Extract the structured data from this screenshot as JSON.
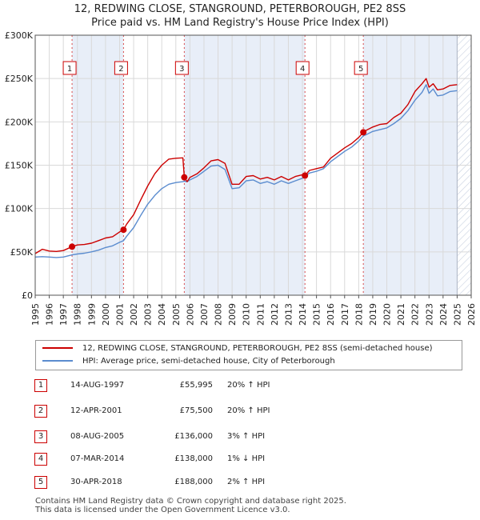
{
  "title": {
    "line1": "12, REDWING CLOSE, STANGROUND, PETERBOROUGH, PE2 8SS",
    "line2": "Price paid vs. HM Land Registry's House Price Index (HPI)"
  },
  "colors": {
    "property": "#cc0000",
    "hpi": "#5b8ccf",
    "shade": "#e8eef8",
    "hatch": "#d0d8e8",
    "marker_border": "#cc0000"
  },
  "legend": {
    "property_label": "12, REDWING CLOSE, STANGROUND, PETERBOROUGH, PE2 8SS (semi-detached house)",
    "hpi_label": "HPI: Average price, semi-detached house, City of Peterborough"
  },
  "sales": [
    {
      "num": "1",
      "date": "14-AUG-1997",
      "price": "£55,995",
      "hpi": "20% ↑ HPI"
    },
    {
      "num": "2",
      "date": "12-APR-2001",
      "price": "£75,500",
      "hpi": "20% ↑ HPI"
    },
    {
      "num": "3",
      "date": "08-AUG-2005",
      "price": "£136,000",
      "hpi": "3% ↑ HPI"
    },
    {
      "num": "4",
      "date": "07-MAR-2014",
      "price": "£138,000",
      "hpi": "1% ↓ HPI"
    },
    {
      "num": "5",
      "date": "30-APR-2018",
      "price": "£188,000",
      "hpi": "2% ↑ HPI"
    }
  ],
  "footer": {
    "line1": "Contains HM Land Registry data © Crown copyright and database right 2025.",
    "line2": "This data is licensed under the Open Government Licence v3.0."
  },
  "chart_data": {
    "type": "line",
    "title": "Price paid vs. HM Land Registry's House Price Index (HPI)",
    "xlim": [
      1995,
      2026
    ],
    "ylim": [
      0,
      300000
    ],
    "x_ticks": [
      1995,
      1996,
      1997,
      1998,
      1999,
      2000,
      2001,
      2002,
      2003,
      2004,
      2005,
      2006,
      2007,
      2008,
      2009,
      2010,
      2011,
      2012,
      2013,
      2014,
      2015,
      2016,
      2017,
      2018,
      2019,
      2020,
      2021,
      2022,
      2023,
      2024,
      2025,
      2026
    ],
    "x_tick_labels": [
      "1995",
      "1996",
      "1997",
      "1998",
      "1999",
      "2000",
      "2001",
      "2002",
      "2003",
      "2004",
      "2005",
      "2006",
      "2007",
      "2008",
      "2009",
      "2010",
      "2011",
      "2012",
      "2013",
      "2014",
      "2015",
      "2016",
      "2017",
      "2018",
      "2019",
      "2020",
      "2021",
      "2022",
      "2023",
      "2024",
      "2025",
      "2026"
    ],
    "y_ticks": [
      0,
      50000,
      100000,
      150000,
      200000,
      250000,
      300000
    ],
    "y_tick_labels": [
      "£0",
      "£50K",
      "£100K",
      "£150K",
      "£200K",
      "£250K",
      "£300K"
    ],
    "forecast_start": 2025.0,
    "shaded_periods": [
      [
        1997.62,
        2001.28
      ],
      [
        2005.6,
        2014.18
      ],
      [
        2018.33,
        2025.0
      ]
    ],
    "sale_markers": [
      {
        "label": "1",
        "x": 1997.62,
        "y": 55995
      },
      {
        "label": "2",
        "x": 2001.28,
        "y": 75500
      },
      {
        "label": "3",
        "x": 2005.6,
        "y": 136000
      },
      {
        "label": "4",
        "x": 2014.18,
        "y": 138000
      },
      {
        "label": "5",
        "x": 2018.33,
        "y": 188000
      }
    ],
    "series": [
      {
        "name": "12, REDWING CLOSE, STANGROUND, PETERBOROUGH, PE2 8SS (semi-detached house)",
        "color": "#cc0000",
        "x": [
          1995.0,
          1995.5,
          1996.0,
          1996.5,
          1997.0,
          1997.62,
          1998.0,
          1998.5,
          1999.0,
          1999.5,
          2000.0,
          2000.5,
          2001.0,
          2001.28,
          2001.5,
          2002.0,
          2002.5,
          2003.0,
          2003.5,
          2004.0,
          2004.5,
          2005.0,
          2005.5,
          2005.6,
          2005.8,
          2006.0,
          2006.5,
          2007.0,
          2007.5,
          2008.0,
          2008.5,
          2009.0,
          2009.5,
          2010.0,
          2010.5,
          2011.0,
          2011.5,
          2012.0,
          2012.5,
          2013.0,
          2013.5,
          2014.0,
          2014.18,
          2014.5,
          2015.0,
          2015.5,
          2016.0,
          2016.5,
          2017.0,
          2017.5,
          2018.0,
          2018.33,
          2018.5,
          2019.0,
          2019.5,
          2020.0,
          2020.5,
          2021.0,
          2021.5,
          2022.0,
          2022.5,
          2022.8,
          2023.0,
          2023.3,
          2023.6,
          2024.0,
          2024.5,
          2025.0
        ],
        "y": [
          48000,
          53000,
          51000,
          50500,
          51500,
          55995,
          58000,
          58500,
          60000,
          63000,
          66000,
          67500,
          73000,
          75500,
          82000,
          93000,
          110000,
          126000,
          140000,
          150000,
          157000,
          158000,
          158500,
          136000,
          131000,
          136000,
          140000,
          147000,
          155000,
          156500,
          152000,
          128000,
          128000,
          137000,
          138000,
          134000,
          136000,
          133000,
          137000,
          133000,
          137000,
          139000,
          138000,
          144000,
          146000,
          148000,
          158000,
          164000,
          170000,
          175000,
          182000,
          188000,
          190000,
          194000,
          197000,
          198000,
          205000,
          210000,
          220000,
          235000,
          244000,
          250000,
          240000,
          244000,
          237000,
          238000,
          242000,
          243000
        ]
      },
      {
        "name": "HPI: Average price, semi-detached house, City of Peterborough",
        "color": "#5b8ccf",
        "x": [
          1995.0,
          1995.5,
          1996.0,
          1996.5,
          1997.0,
          1997.62,
          1998.0,
          1998.5,
          1999.0,
          1999.5,
          2000.0,
          2000.5,
          2001.0,
          2001.28,
          2001.5,
          2002.0,
          2002.5,
          2003.0,
          2003.5,
          2004.0,
          2004.5,
          2005.0,
          2005.5,
          2005.6,
          2005.8,
          2006.0,
          2006.5,
          2007.0,
          2007.5,
          2008.0,
          2008.5,
          2009.0,
          2009.5,
          2010.0,
          2010.5,
          2011.0,
          2011.5,
          2012.0,
          2012.5,
          2013.0,
          2013.5,
          2014.0,
          2014.18,
          2014.5,
          2015.0,
          2015.5,
          2016.0,
          2016.5,
          2017.0,
          2017.5,
          2018.0,
          2018.33,
          2018.5,
          2019.0,
          2019.5,
          2020.0,
          2020.5,
          2021.0,
          2021.5,
          2022.0,
          2022.5,
          2022.8,
          2023.0,
          2023.3,
          2023.6,
          2024.0,
          2024.5,
          2025.0
        ],
        "y": [
          44000,
          44500,
          44000,
          43500,
          44000,
          46500,
          47500,
          48500,
          50000,
          52000,
          55000,
          57000,
          61000,
          63000,
          68000,
          78000,
          92000,
          105000,
          115000,
          123000,
          128000,
          130000,
          131000,
          131500,
          131000,
          133000,
          137000,
          143000,
          149000,
          150000,
          145000,
          123000,
          124000,
          132000,
          133000,
          129000,
          131000,
          128000,
          132000,
          129000,
          132000,
          135000,
          137000,
          141000,
          143000,
          146000,
          154000,
          160000,
          166000,
          171000,
          178000,
          184000,
          185000,
          189000,
          191000,
          193000,
          198000,
          204000,
          213000,
          225000,
          234000,
          243000,
          233000,
          238000,
          230000,
          231000,
          235000,
          236000
        ]
      }
    ]
  }
}
